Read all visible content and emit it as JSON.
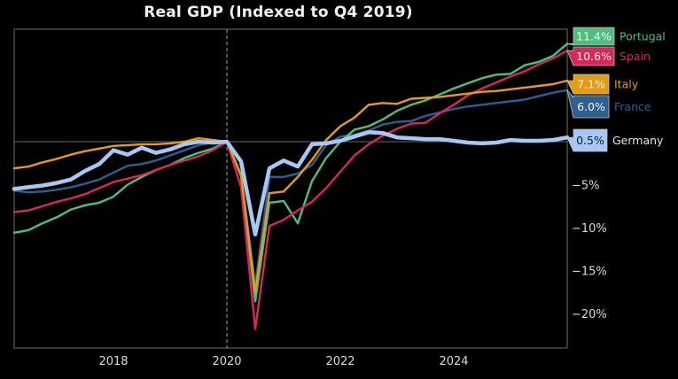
{
  "chart_data": {
    "type": "line",
    "title": "Real GDP (Indexed to Q4 2019)",
    "xlabel": "",
    "ylabel": "",
    "x": [
      "2016 Q1",
      "2016 Q2",
      "2016 Q3",
      "2016 Q4",
      "2017 Q1",
      "2017 Q2",
      "2017 Q3",
      "2017 Q4",
      "2018 Q1",
      "2018 Q2",
      "2018 Q3",
      "2018 Q4",
      "2019 Q1",
      "2019 Q2",
      "2019 Q3",
      "2019 Q4",
      "2020 Q1",
      "2020 Q2",
      "2020 Q3",
      "2020 Q4",
      "2021 Q1",
      "2021 Q2",
      "2021 Q3",
      "2021 Q4",
      "2022 Q1",
      "2022 Q2",
      "2022 Q3",
      "2022 Q4",
      "2023 Q1",
      "2023 Q2",
      "2023 Q3",
      "2023 Q4",
      "2024 Q1",
      "2024 Q2",
      "2024 Q3",
      "2024 Q4",
      "2025 Q1",
      "2025 Q2",
      "2025 Q3",
      "2025 Q4"
    ],
    "x_tick_labels": [
      "2018",
      "2020",
      "2022",
      "2024"
    ],
    "x_tick_positions": [
      2018,
      2020,
      2022,
      2024
    ],
    "x_range": [
      2016.0,
      2026.0
    ],
    "reference_line_x": 2020,
    "y_tick_labels": [
      "-5%",
      "-10%",
      "-15%",
      "-20%"
    ],
    "y_tick_values": [
      -5,
      -10,
      -15,
      -20
    ],
    "ylim": [
      -24.3,
      13.1
    ],
    "zero_line": true,
    "grid": false,
    "legend": "end-of-line labels, right",
    "series": [
      {
        "name": "Portugal",
        "color": "#4fbf80",
        "end_label": "11.4%",
        "values": [
          -10.6,
          -10.3,
          -9.5,
          -8.8,
          -7.9,
          -7.4,
          -7.1,
          -6.4,
          -5.0,
          -4.1,
          -3.3,
          -2.7,
          -1.9,
          -1.3,
          -0.8,
          0,
          -4.0,
          -18.6,
          -7.1,
          -6.9,
          -9.5,
          -4.6,
          -1.9,
          0.0,
          1.4,
          1.8,
          2.6,
          3.6,
          4.3,
          4.8,
          5.5,
          6.2,
          6.8,
          7.4,
          7.8,
          7.9,
          8.9,
          9.3,
          10.0,
          11.4
        ]
      },
      {
        "name": "Spain",
        "color": "#d42a5b",
        "end_label": "10.6%",
        "values": [
          -8.2,
          -8.0,
          -7.5,
          -7.0,
          -6.6,
          -6.1,
          -5.4,
          -4.7,
          -4.3,
          -3.9,
          -3.3,
          -2.7,
          -2.2,
          -1.7,
          -1.0,
          0,
          -5.3,
          -21.8,
          -9.8,
          -9.1,
          -8.0,
          -7.0,
          -5.4,
          -3.5,
          -1.6,
          -0.3,
          0.7,
          1.5,
          2.1,
          2.2,
          3.3,
          4.3,
          5.4,
          6.2,
          6.9,
          7.6,
          8.2,
          9.0,
          9.7,
          10.6
        ]
      },
      {
        "name": "Italy",
        "color": "#e39c16",
        "end_label": "7.1%",
        "values": [
          -3.1,
          -2.9,
          -2.4,
          -2.0,
          -1.5,
          -1.1,
          -0.8,
          -0.5,
          -0.4,
          -0.3,
          -0.3,
          -0.2,
          0.0,
          0.4,
          0.2,
          0,
          -3.9,
          -17.5,
          -6.0,
          -5.8,
          -4.1,
          -2.1,
          0.2,
          1.8,
          2.8,
          4.3,
          4.5,
          4.4,
          5.0,
          5.1,
          5.2,
          5.4,
          5.6,
          5.8,
          5.9,
          6.1,
          6.3,
          6.5,
          6.7,
          7.1
        ]
      },
      {
        "name": "France",
        "color": "#2e5f8f",
        "end_label": "6.0%",
        "values": [
          -5.7,
          -5.9,
          -5.8,
          -5.6,
          -5.3,
          -4.9,
          -4.4,
          -3.6,
          -2.8,
          -2.6,
          -2.2,
          -1.6,
          -1.0,
          -0.4,
          -0.1,
          0,
          -3.8,
          -16.7,
          -4.1,
          -4.1,
          -3.7,
          -2.7,
          -0.4,
          0.6,
          0.8,
          1.3,
          2.0,
          2.3,
          2.4,
          3.0,
          3.4,
          3.8,
          4.1,
          4.3,
          4.5,
          4.7,
          4.9,
          5.3,
          5.7,
          6.0
        ]
      },
      {
        "name": "Germany",
        "color": "#a8c8f4",
        "end_label": "0.5%",
        "values": [
          -5.5,
          -5.3,
          -5.1,
          -4.8,
          -4.4,
          -3.4,
          -2.6,
          -1.0,
          -1.5,
          -0.7,
          -1.3,
          -0.9,
          -0.3,
          0.0,
          -0.1,
          0,
          -2.3,
          -10.8,
          -3.1,
          -2.2,
          -2.9,
          -0.3,
          -0.2,
          0.1,
          0.6,
          1.1,
          1.0,
          0.5,
          0.4,
          0.3,
          0.3,
          0.1,
          -0.1,
          -0.2,
          -0.1,
          0.2,
          0.1,
          0.1,
          0.2,
          0.5
        ]
      }
    ]
  }
}
